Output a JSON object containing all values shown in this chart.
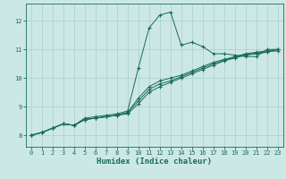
{
  "xlabel": "Humidex (Indice chaleur)",
  "ylabel": "",
  "background_color": "#cce8e5",
  "grid_color": "#aacfcc",
  "line_color": "#1a6b5a",
  "xlim": [
    -0.5,
    23.5
  ],
  "ylim": [
    7.6,
    12.6
  ],
  "yticks": [
    8,
    9,
    10,
    11,
    12
  ],
  "xticks": [
    0,
    1,
    2,
    3,
    4,
    5,
    6,
    7,
    8,
    9,
    10,
    11,
    12,
    13,
    14,
    15,
    16,
    17,
    18,
    19,
    20,
    21,
    22,
    23
  ],
  "line1_x": [
    0,
    1,
    2,
    3,
    4,
    5,
    6,
    7,
    8,
    9,
    10,
    11,
    12,
    13,
    14,
    15,
    16,
    17,
    18,
    19,
    20,
    21,
    22,
    23
  ],
  "line1_y": [
    8.0,
    8.1,
    8.25,
    8.4,
    8.35,
    8.6,
    8.65,
    8.7,
    8.75,
    8.85,
    10.35,
    11.75,
    12.2,
    12.3,
    11.15,
    11.25,
    11.1,
    10.85,
    10.85,
    10.8,
    10.75,
    10.75,
    11.0,
    11.0
  ],
  "line2_x": [
    0,
    1,
    2,
    3,
    4,
    5,
    6,
    7,
    8,
    9,
    10,
    11,
    12,
    13,
    14,
    15,
    16,
    17,
    18,
    19,
    20,
    21,
    22,
    23
  ],
  "line2_y": [
    8.0,
    8.1,
    8.25,
    8.4,
    8.35,
    8.55,
    8.6,
    8.65,
    8.7,
    8.75,
    9.1,
    9.5,
    9.7,
    9.85,
    10.0,
    10.15,
    10.3,
    10.45,
    10.6,
    10.7,
    10.8,
    10.85,
    10.9,
    11.0
  ],
  "line3_x": [
    0,
    1,
    2,
    3,
    4,
    5,
    6,
    7,
    8,
    9,
    10,
    11,
    12,
    13,
    14,
    15,
    16,
    17,
    18,
    19,
    20,
    21,
    22,
    23
  ],
  "line3_y": [
    8.0,
    8.1,
    8.25,
    8.4,
    8.35,
    8.55,
    8.6,
    8.65,
    8.7,
    8.8,
    9.2,
    9.6,
    9.8,
    9.9,
    10.05,
    10.2,
    10.35,
    10.5,
    10.62,
    10.72,
    10.82,
    10.87,
    10.92,
    10.95
  ],
  "line4_x": [
    0,
    1,
    2,
    3,
    4,
    5,
    6,
    7,
    8,
    9,
    10,
    11,
    12,
    13,
    14,
    15,
    16,
    17,
    18,
    19,
    20,
    21,
    22,
    23
  ],
  "line4_y": [
    8.0,
    8.1,
    8.25,
    8.4,
    8.35,
    8.55,
    8.6,
    8.65,
    8.7,
    8.8,
    9.3,
    9.7,
    9.9,
    10.0,
    10.1,
    10.25,
    10.4,
    10.55,
    10.65,
    10.75,
    10.85,
    10.9,
    10.95,
    11.0
  ]
}
